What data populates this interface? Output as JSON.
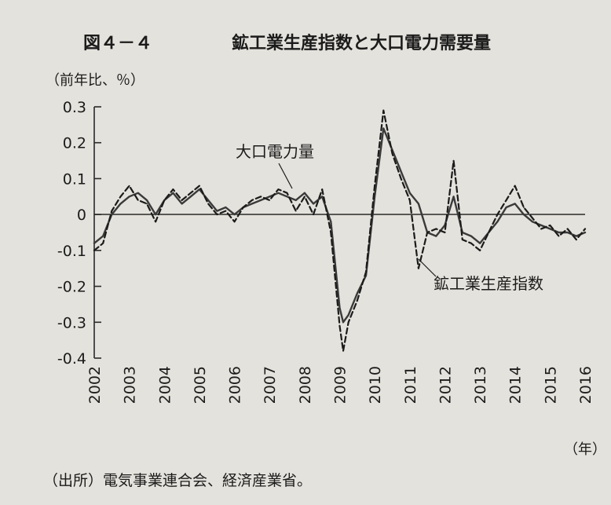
{
  "figure": {
    "number": "図４－４",
    "title": "鉱工業生産指数と大口電力需要量",
    "y_unit": "（前年比、％）",
    "x_unit": "（年）",
    "source": "（出所）電気事業連合会、経済産業省。"
  },
  "chart_data": {
    "type": "line",
    "title": "鉱工業生産指数と大口電力需要量",
    "ylabel": "（前年比、％）",
    "xlabel": "（年）",
    "ylim": [
      -0.4,
      0.3
    ],
    "yticks": [
      0.3,
      0.2,
      0.1,
      0,
      -0.1,
      -0.2,
      -0.3,
      -0.4
    ],
    "ytick_labels": [
      "0.3",
      "0.2",
      "0.1",
      "0",
      "-0.1",
      "-0.2",
      "-0.3",
      "-0.4"
    ],
    "xlim": [
      2002,
      2016
    ],
    "xticks": [
      2002,
      2003,
      2004,
      2005,
      2006,
      2007,
      2008,
      2009,
      2010,
      2011,
      2012,
      2013,
      2014,
      2015,
      2016
    ],
    "xtick_labels": [
      "2002",
      "2003",
      "2004",
      "2005",
      "2006",
      "2007",
      "2008",
      "2009",
      "2010",
      "2011",
      "2012",
      "2013",
      "2014",
      "2015",
      "2016"
    ],
    "grid": false,
    "legend": "none (series labeled by annotations)",
    "series": [
      {
        "name": "大口電力量",
        "style": "solid",
        "color": "#3a3a3a",
        "points": [
          [
            2002.0,
            -0.08
          ],
          [
            2002.25,
            -0.06
          ],
          [
            2002.5,
            0.0
          ],
          [
            2002.75,
            0.03
          ],
          [
            2003.0,
            0.05
          ],
          [
            2003.25,
            0.06
          ],
          [
            2003.5,
            0.04
          ],
          [
            2003.75,
            0.0
          ],
          [
            2004.0,
            0.04
          ],
          [
            2004.25,
            0.06
          ],
          [
            2004.5,
            0.03
          ],
          [
            2004.75,
            0.05
          ],
          [
            2005.0,
            0.07
          ],
          [
            2005.25,
            0.04
          ],
          [
            2005.5,
            0.01
          ],
          [
            2005.75,
            0.02
          ],
          [
            2006.0,
            0.0
          ],
          [
            2006.25,
            0.02
          ],
          [
            2006.5,
            0.03
          ],
          [
            2006.75,
            0.04
          ],
          [
            2007.0,
            0.05
          ],
          [
            2007.25,
            0.06
          ],
          [
            2007.5,
            0.05
          ],
          [
            2007.75,
            0.04
          ],
          [
            2008.0,
            0.06
          ],
          [
            2008.25,
            0.03
          ],
          [
            2008.5,
            0.05
          ],
          [
            2008.75,
            -0.02
          ],
          [
            2009.0,
            -0.26
          ],
          [
            2009.1,
            -0.3
          ],
          [
            2009.25,
            -0.28
          ],
          [
            2009.5,
            -0.22
          ],
          [
            2009.75,
            -0.17
          ],
          [
            2010.0,
            0.05
          ],
          [
            2010.25,
            0.24
          ],
          [
            2010.5,
            0.18
          ],
          [
            2010.75,
            0.12
          ],
          [
            2011.0,
            0.06
          ],
          [
            2011.25,
            0.03
          ],
          [
            2011.5,
            -0.05
          ],
          [
            2011.75,
            -0.06
          ],
          [
            2012.0,
            -0.03
          ],
          [
            2012.25,
            0.05
          ],
          [
            2012.5,
            -0.05
          ],
          [
            2012.75,
            -0.06
          ],
          [
            2013.0,
            -0.08
          ],
          [
            2013.25,
            -0.05
          ],
          [
            2013.5,
            -0.02
          ],
          [
            2013.75,
            0.02
          ],
          [
            2014.0,
            0.03
          ],
          [
            2014.25,
            0.0
          ],
          [
            2014.5,
            -0.02
          ],
          [
            2014.75,
            -0.03
          ],
          [
            2015.0,
            -0.04
          ],
          [
            2015.25,
            -0.05
          ],
          [
            2015.5,
            -0.05
          ],
          [
            2015.75,
            -0.06
          ],
          [
            2016.0,
            -0.05
          ]
        ]
      },
      {
        "name": "鉱工業生産指数",
        "style": "dashed",
        "color": "#1b1b1b",
        "points": [
          [
            2002.0,
            -0.1
          ],
          [
            2002.25,
            -0.08
          ],
          [
            2002.5,
            0.01
          ],
          [
            2002.75,
            0.05
          ],
          [
            2003.0,
            0.08
          ],
          [
            2003.25,
            0.04
          ],
          [
            2003.5,
            0.03
          ],
          [
            2003.75,
            -0.02
          ],
          [
            2004.0,
            0.04
          ],
          [
            2004.25,
            0.07
          ],
          [
            2004.5,
            0.04
          ],
          [
            2004.75,
            0.06
          ],
          [
            2005.0,
            0.08
          ],
          [
            2005.25,
            0.03
          ],
          [
            2005.5,
            0.0
          ],
          [
            2005.75,
            0.01
          ],
          [
            2006.0,
            -0.02
          ],
          [
            2006.25,
            0.02
          ],
          [
            2006.5,
            0.04
          ],
          [
            2006.75,
            0.05
          ],
          [
            2007.0,
            0.04
          ],
          [
            2007.25,
            0.07
          ],
          [
            2007.5,
            0.06
          ],
          [
            2007.75,
            0.01
          ],
          [
            2008.0,
            0.05
          ],
          [
            2008.25,
            0.0
          ],
          [
            2008.5,
            0.07
          ],
          [
            2008.75,
            -0.05
          ],
          [
            2009.0,
            -0.31
          ],
          [
            2009.1,
            -0.38
          ],
          [
            2009.25,
            -0.3
          ],
          [
            2009.5,
            -0.24
          ],
          [
            2009.75,
            -0.16
          ],
          [
            2010.0,
            0.08
          ],
          [
            2010.25,
            0.29
          ],
          [
            2010.5,
            0.17
          ],
          [
            2010.75,
            0.1
          ],
          [
            2011.0,
            0.04
          ],
          [
            2011.25,
            -0.15
          ],
          [
            2011.5,
            -0.05
          ],
          [
            2011.75,
            -0.04
          ],
          [
            2012.0,
            -0.05
          ],
          [
            2012.25,
            0.15
          ],
          [
            2012.5,
            -0.07
          ],
          [
            2012.75,
            -0.08
          ],
          [
            2013.0,
            -0.1
          ],
          [
            2013.25,
            -0.05
          ],
          [
            2013.5,
            0.0
          ],
          [
            2013.75,
            0.04
          ],
          [
            2014.0,
            0.08
          ],
          [
            2014.25,
            0.02
          ],
          [
            2014.5,
            -0.01
          ],
          [
            2014.75,
            -0.04
          ],
          [
            2015.0,
            -0.03
          ],
          [
            2015.25,
            -0.06
          ],
          [
            2015.5,
            -0.04
          ],
          [
            2015.75,
            -0.07
          ],
          [
            2016.0,
            -0.04
          ]
        ]
      }
    ],
    "annotations": [
      {
        "text": "大口電力量",
        "series": "大口電力量"
      },
      {
        "text": "鉱工業生産指数",
        "series": "鉱工業生産指数"
      }
    ]
  }
}
